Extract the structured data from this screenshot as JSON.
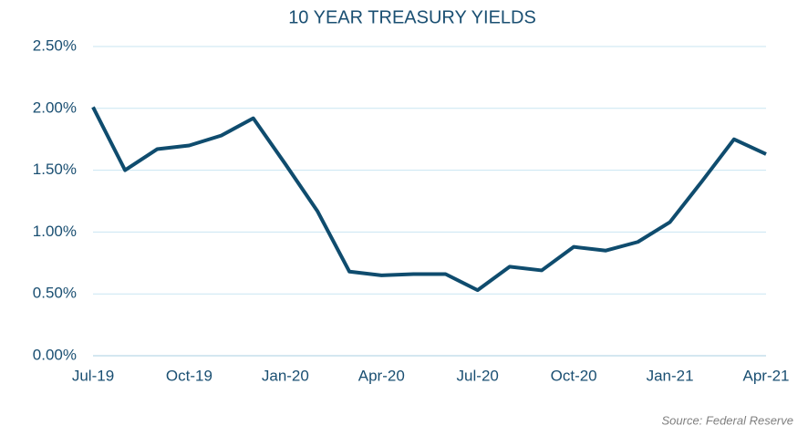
{
  "chart_data": {
    "type": "line",
    "title": "10 YEAR TREASURY YIELDS",
    "source": "Source: Federal Reserve",
    "categories": [
      "Jul-19",
      null,
      null,
      "Oct-19",
      null,
      null,
      "Jan-20",
      null,
      null,
      "Apr-20",
      null,
      null,
      "Jul-20",
      null,
      null,
      "Oct-20",
      null,
      null,
      "Jan-21",
      null,
      null,
      "Apr-21"
    ],
    "values": [
      2.01,
      1.5,
      1.67,
      1.7,
      1.78,
      1.92,
      1.55,
      1.17,
      0.68,
      0.65,
      0.66,
      0.66,
      0.53,
      0.72,
      0.69,
      0.88,
      0.85,
      0.92,
      1.08,
      1.41,
      1.75,
      1.63
    ],
    "color": "#0f4c6e",
    "ylim": [
      0,
      2.5
    ],
    "yticks": [
      {
        "value": 0,
        "label": "0.00%"
      },
      {
        "value": 0.5,
        "label": "0.50%"
      },
      {
        "value": 1,
        "label": "1.00%"
      },
      {
        "value": 1.5,
        "label": "1.50%"
      },
      {
        "value": 2,
        "label": "2.00%"
      },
      {
        "value": 2.5,
        "label": "2.50%"
      }
    ],
    "grid": true
  }
}
